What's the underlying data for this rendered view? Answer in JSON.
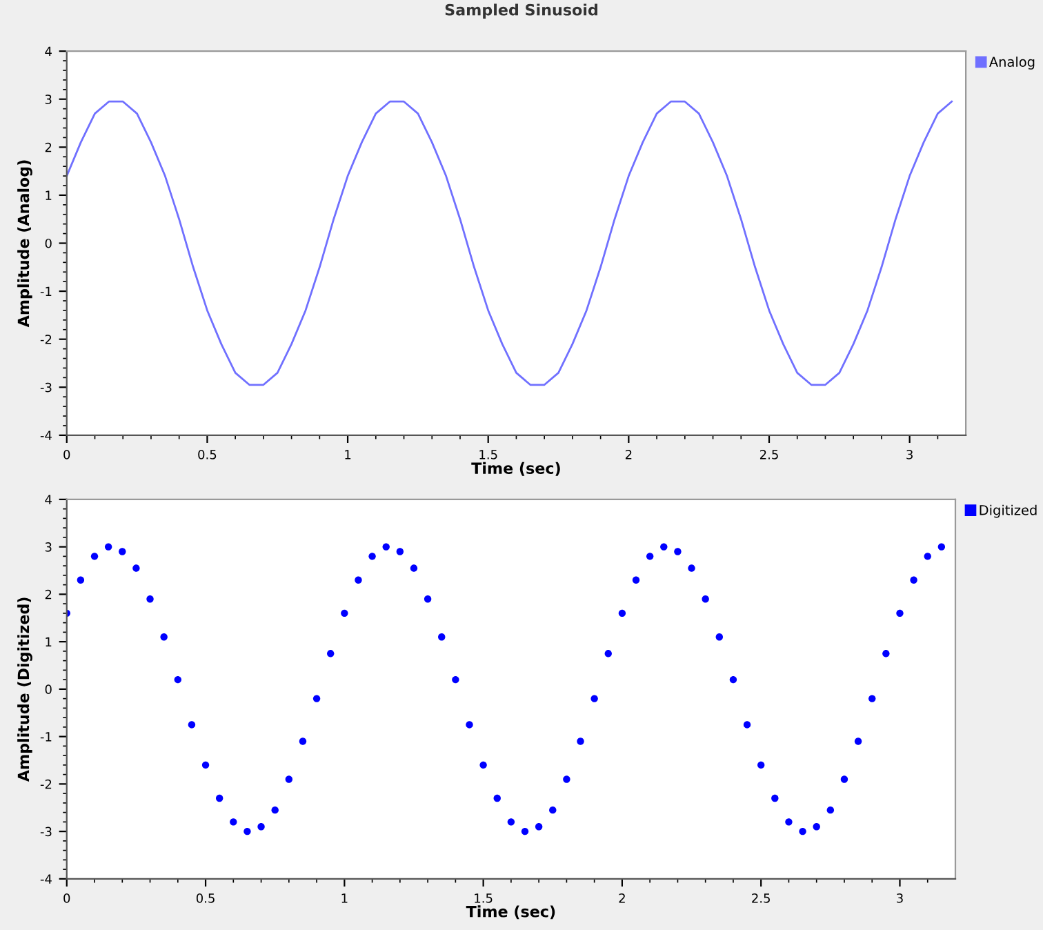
{
  "chart_data": [
    {
      "type": "line",
      "title": "Sampled Sinusoid",
      "xlabel": "Time (sec)",
      "ylabel": "Amplitude (Analog)",
      "legend": "top right",
      "marker": "none",
      "line_style": "solid",
      "grid": false,
      "x": [
        0,
        0.05,
        0.1,
        0.15,
        0.2,
        0.25,
        0.3,
        0.35,
        0.4,
        0.45,
        0.5,
        0.55,
        0.6,
        0.65,
        0.7,
        0.75,
        0.8,
        0.85,
        0.9,
        0.95,
        1,
        1.05,
        1.1,
        1.15,
        1.2,
        1.25,
        1.3,
        1.35,
        1.4,
        1.45,
        1.5,
        1.55,
        1.6,
        1.65,
        1.7,
        1.75,
        1.8,
        1.85,
        1.9,
        1.95,
        2,
        2.05,
        2.1,
        2.15,
        2.2,
        2.25,
        2.3,
        2.35,
        2.4,
        2.45,
        2.5,
        2.55,
        2.6,
        2.65,
        2.7,
        2.75,
        2.8,
        2.85,
        2.9,
        2.95,
        3,
        3.05,
        3.1,
        3.15
      ],
      "series": [
        {
          "name": "Analog",
          "color": "#7070ff",
          "values": [
            1.4,
            2.1,
            2.7,
            2.95,
            2.95,
            2.7,
            2.1,
            1.4,
            0.5,
            -0.5,
            -1.4,
            -2.1,
            -2.7,
            -2.95,
            -2.95,
            -2.7,
            -2.1,
            -1.4,
            -0.5,
            0.5,
            1.4,
            2.1,
            2.7,
            2.95,
            2.95,
            2.7,
            2.1,
            1.4,
            0.5,
            -0.5,
            -1.4,
            -2.1,
            -2.7,
            -2.95,
            -2.95,
            -2.7,
            -2.1,
            -1.4,
            -0.5,
            0.5,
            1.4,
            2.1,
            2.7,
            2.95,
            2.95,
            2.7,
            2.1,
            1.4,
            0.5,
            -0.5,
            -1.4,
            -2.1,
            -2.7,
            -2.95,
            -2.95,
            -2.7,
            -2.1,
            -1.4,
            -0.5,
            0.5,
            1.4,
            2.1,
            2.7,
            2.95
          ]
        }
      ],
      "xlim": [
        0,
        3.2
      ],
      "ylim": [
        -4,
        4
      ],
      "xticks": [
        0,
        {
          "value": 0.1,
          "label": null
        },
        {
          "value": 0.2,
          "label": null
        },
        {
          "value": 0.3,
          "label": null
        },
        {
          "value": 0.4,
          "label": null
        },
        0.5,
        {
          "value": 0.6,
          "label": null
        },
        {
          "value": 0.7,
          "label": null
        },
        {
          "value": 0.8,
          "label": null
        },
        {
          "value": 0.9,
          "label": null
        },
        1,
        {
          "value": 1.1,
          "label": null
        },
        {
          "value": 1.2,
          "label": null
        },
        {
          "value": 1.3,
          "label": null
        },
        {
          "value": 1.4,
          "label": null
        },
        1.5,
        {
          "value": 1.6,
          "label": null
        },
        {
          "value": 1.7,
          "label": null
        },
        {
          "value": 1.8,
          "label": null
        },
        {
          "value": 1.9,
          "label": null
        },
        2,
        {
          "value": 2.1,
          "label": null
        },
        {
          "value": 2.2,
          "label": null
        },
        {
          "value": 2.3,
          "label": null
        },
        {
          "value": 2.4,
          "label": null
        },
        2.5,
        {
          "value": 2.6,
          "label": null
        },
        {
          "value": 2.7,
          "label": null
        },
        {
          "value": 2.8,
          "label": null
        },
        {
          "value": 2.9,
          "label": null
        },
        3,
        {
          "value": 3.1,
          "label": null
        }
      ],
      "yticks": [
        -4,
        {
          "value": -3.8,
          "label": null
        },
        {
          "value": -3.6,
          "label": null
        },
        {
          "value": -3.4,
          "label": null
        },
        {
          "value": -3.2,
          "label": null
        },
        -3,
        {
          "value": -2.8,
          "label": null
        },
        {
          "value": -2.6,
          "label": null
        },
        {
          "value": -2.4,
          "label": null
        },
        {
          "value": -2.2,
          "label": null
        },
        -2,
        {
          "value": -1.8,
          "label": null
        },
        {
          "value": -1.6,
          "label": null
        },
        {
          "value": -1.4,
          "label": null
        },
        {
          "value": -1.2,
          "label": null
        },
        -1,
        {
          "value": -0.8,
          "label": null
        },
        {
          "value": -0.6,
          "label": null
        },
        {
          "value": -0.4,
          "label": null
        },
        {
          "value": -0.2,
          "label": null
        },
        0,
        {
          "value": 0.2,
          "label": null
        },
        {
          "value": 0.4,
          "label": null
        },
        {
          "value": 0.6,
          "label": null
        },
        {
          "value": 0.8,
          "label": null
        },
        1,
        {
          "value": 1.2,
          "label": null
        },
        {
          "value": 1.4,
          "label": null
        },
        {
          "value": 1.6,
          "label": null
        },
        {
          "value": 1.8,
          "label": null
        },
        2,
        {
          "value": 2.2,
          "label": null
        },
        {
          "value": 2.4,
          "label": null
        },
        {
          "value": 2.6,
          "label": null
        },
        {
          "value": 2.8,
          "label": null
        },
        3,
        {
          "value": 3.2,
          "label": null
        },
        {
          "value": 3.4,
          "label": null
        },
        {
          "value": 3.6,
          "label": null
        },
        {
          "value": 3.8,
          "label": null
        },
        4
      ]
    },
    {
      "type": "scatter",
      "xlabel": "Time (sec)",
      "ylabel": "Amplitude (Digitized)",
      "legend": "top right",
      "marker": "circle",
      "grid": false,
      "x": [
        0,
        0.05,
        0.1,
        0.15,
        0.2,
        0.25,
        0.3,
        0.35,
        0.4,
        0.45,
        0.5,
        0.55,
        0.6,
        0.65,
        0.7,
        0.75,
        0.8,
        0.85,
        0.9,
        0.95,
        1,
        1.05,
        1.1,
        1.15,
        1.2,
        1.25,
        1.3,
        1.35,
        1.4,
        1.45,
        1.5,
        1.55,
        1.6,
        1.65,
        1.7,
        1.75,
        1.8,
        1.85,
        1.9,
        1.95,
        2,
        2.05,
        2.1,
        2.15,
        2.2,
        2.25,
        2.3,
        2.35,
        2.4,
        2.45,
        2.5,
        2.55,
        2.6,
        2.65,
        2.7,
        2.75,
        2.8,
        2.85,
        2.9,
        2.95,
        3,
        3.05,
        3.1,
        3.15
      ],
      "series": [
        {
          "name": "Digitized",
          "color": "#0000ff",
          "values": [
            1.6,
            2.3,
            2.8,
            3.0,
            2.9,
            2.55,
            1.9,
            1.1,
            0.2,
            -0.75,
            -1.6,
            -2.3,
            -2.8,
            -3.0,
            -2.9,
            -2.55,
            -1.9,
            -1.1,
            -0.2,
            0.75,
            1.6,
            2.3,
            2.8,
            3.0,
            2.9,
            2.55,
            1.9,
            1.1,
            0.2,
            -0.75,
            -1.6,
            -2.3,
            -2.8,
            -3.0,
            -2.9,
            -2.55,
            -1.9,
            -1.1,
            -0.2,
            0.75,
            1.6,
            2.3,
            2.8,
            3.0,
            2.9,
            2.55,
            1.9,
            1.1,
            0.2,
            -0.75,
            -1.6,
            -2.3,
            -2.8,
            -3.0,
            -2.9,
            -2.55,
            -1.9,
            -1.1,
            -0.2,
            0.75,
            1.6,
            2.3,
            2.8,
            3.0
          ]
        }
      ],
      "xlim": [
        0,
        3.2
      ],
      "ylim": [
        -4,
        4
      ],
      "xticks": [
        0,
        {
          "value": 0.1,
          "label": null
        },
        {
          "value": 0.2,
          "label": null
        },
        {
          "value": 0.3,
          "label": null
        },
        {
          "value": 0.4,
          "label": null
        },
        0.5,
        {
          "value": 0.6,
          "label": null
        },
        {
          "value": 0.7,
          "label": null
        },
        {
          "value": 0.8,
          "label": null
        },
        {
          "value": 0.9,
          "label": null
        },
        1,
        {
          "value": 1.1,
          "label": null
        },
        {
          "value": 1.2,
          "label": null
        },
        {
          "value": 1.3,
          "label": null
        },
        {
          "value": 1.4,
          "label": null
        },
        1.5,
        {
          "value": 1.6,
          "label": null
        },
        {
          "value": 1.7,
          "label": null
        },
        {
          "value": 1.8,
          "label": null
        },
        {
          "value": 1.9,
          "label": null
        },
        2,
        {
          "value": 2.1,
          "label": null
        },
        {
          "value": 2.2,
          "label": null
        },
        {
          "value": 2.3,
          "label": null
        },
        {
          "value": 2.4,
          "label": null
        },
        2.5,
        {
          "value": 2.6,
          "label": null
        },
        {
          "value": 2.7,
          "label": null
        },
        {
          "value": 2.8,
          "label": null
        },
        {
          "value": 2.9,
          "label": null
        },
        3,
        {
          "value": 3.1,
          "label": null
        }
      ],
      "yticks": [
        -4,
        {
          "value": -3.8,
          "label": null
        },
        {
          "value": -3.6,
          "label": null
        },
        {
          "value": -3.4,
          "label": null
        },
        {
          "value": -3.2,
          "label": null
        },
        -3,
        {
          "value": -2.8,
          "label": null
        },
        {
          "value": -2.6,
          "label": null
        },
        {
          "value": -2.4,
          "label": null
        },
        {
          "value": -2.2,
          "label": null
        },
        -2,
        {
          "value": -1.8,
          "label": null
        },
        {
          "value": -1.6,
          "label": null
        },
        {
          "value": -1.4,
          "label": null
        },
        {
          "value": -1.2,
          "label": null
        },
        -1,
        {
          "value": -0.8,
          "label": null
        },
        {
          "value": -0.6,
          "label": null
        },
        {
          "value": -0.4,
          "label": null
        },
        {
          "value": -0.2,
          "label": null
        },
        0,
        {
          "value": 0.2,
          "label": null
        },
        {
          "value": 0.4,
          "label": null
        },
        {
          "value": 0.6,
          "label": null
        },
        {
          "value": 0.8,
          "label": null
        },
        1,
        {
          "value": 1.2,
          "label": null
        },
        {
          "value": 1.4,
          "label": null
        },
        {
          "value": 1.6,
          "label": null
        },
        {
          "value": 1.8,
          "label": null
        },
        2,
        {
          "value": 2.2,
          "label": null
        },
        {
          "value": 2.4,
          "label": null
        },
        {
          "value": 2.6,
          "label": null
        },
        {
          "value": 2.8,
          "label": null
        },
        3,
        {
          "value": 3.2,
          "label": null
        },
        {
          "value": 3.4,
          "label": null
        },
        {
          "value": 3.6,
          "label": null
        },
        {
          "value": 3.8,
          "label": null
        },
        4
      ]
    }
  ]
}
